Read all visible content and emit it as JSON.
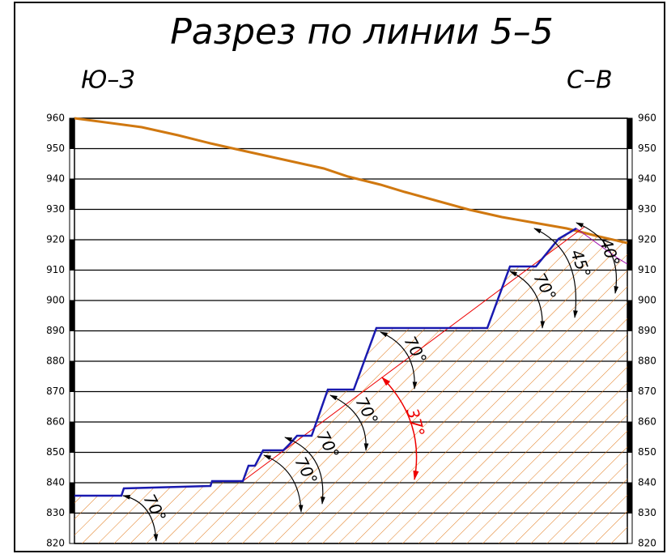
{
  "title": "Разрез по линии 5–5",
  "directions": [
    "Ю–З",
    "С–В"
  ],
  "elevations": [
    960,
    950,
    940,
    930,
    920,
    910,
    900,
    890,
    880,
    870,
    860,
    850,
    840,
    830,
    820
  ],
  "angle_labels": [
    "70°",
    "70°",
    "70°",
    "70°",
    "70°",
    "37°",
    "70°",
    "45°",
    "40°"
  ]
}
